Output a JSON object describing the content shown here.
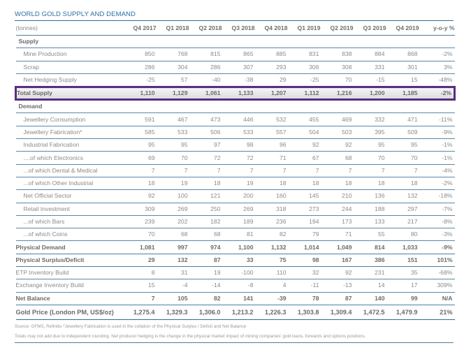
{
  "title": "WORLD GOLD SUPPLY AND DEMAND",
  "header": {
    "unit": "(tonnes)",
    "columns": [
      "Q4 2017",
      "Q1 2018",
      "Q2 2018",
      "Q3 2018",
      "Q4 2018",
      "Q1 2019",
      "Q2 2019",
      "Q3 2019",
      "Q4 2019",
      "y-o-y %"
    ]
  },
  "sections": {
    "supply": "Supply",
    "demand": "Demand"
  },
  "rows": {
    "mine_production": {
      "label": "Mine Production",
      "values": [
        "850",
        "768",
        "815",
        "865",
        "885",
        "831",
        "838",
        "884",
        "868"
      ],
      "yoy": "-2%"
    },
    "scrap": {
      "label": "Scrap",
      "values": [
        "286",
        "304",
        "286",
        "307",
        "293",
        "306",
        "308",
        "331",
        "301"
      ],
      "yoy": "3%"
    },
    "net_hedging": {
      "label": "Net Hedging Supply",
      "values": [
        "-25",
        "57",
        "-40",
        "-38",
        "29",
        "-25",
        "70",
        "-15",
        "15"
      ],
      "yoy": "-48%"
    },
    "total_supply": {
      "label": "Total Supply",
      "values": [
        "1,110",
        "1,129",
        "1,061",
        "1,133",
        "1,207",
        "1,112",
        "1,216",
        "1,200",
        "1,185"
      ],
      "yoy": "-2%"
    },
    "jewellery_consumption": {
      "label": "Jewellery Consumption",
      "values": [
        "591",
        "467",
        "473",
        "446",
        "532",
        "455",
        "469",
        "332",
        "471"
      ],
      "yoy": "-11%"
    },
    "jewellery_fabrication": {
      "label": "Jewellery Fabrication*",
      "values": [
        "585",
        "533",
        "506",
        "533",
        "557",
        "504",
        "503",
        "395",
        "509"
      ],
      "yoy": "-9%"
    },
    "industrial_fabrication": {
      "label": "Industrial Fabrication",
      "values": [
        "95",
        "95",
        "97",
        "98",
        "96",
        "92",
        "92",
        "95",
        "95"
      ],
      "yoy": "-1%"
    },
    "electronics": {
      "label": "....of which Electronics",
      "values": [
        "69",
        "70",
        "72",
        "72",
        "71",
        "67",
        "68",
        "70",
        "70"
      ],
      "yoy": "-1%"
    },
    "dental_medical": {
      "label": "...of which Dental & Medical",
      "values": [
        "7",
        "7",
        "7",
        "7",
        "7",
        "7",
        "7",
        "7",
        "7"
      ],
      "yoy": "-4%"
    },
    "other_industrial": {
      "label": "...of which Other Industrial",
      "values": [
        "18",
        "19",
        "18",
        "19",
        "18",
        "18",
        "18",
        "18",
        "18"
      ],
      "yoy": "-2%"
    },
    "net_official_sector": {
      "label": "Net Official Sector",
      "values": [
        "92",
        "100",
        "121",
        "200",
        "160",
        "145",
        "210",
        "136",
        "132"
      ],
      "yoy": "-18%"
    },
    "retail_investment": {
      "label": "Retail Investment",
      "values": [
        "309",
        "269",
        "250",
        "269",
        "318",
        "273",
        "244",
        "188",
        "297"
      ],
      "yoy": "-7%"
    },
    "bars": {
      "label": "...of which Bars",
      "values": [
        "239",
        "202",
        "182",
        "189",
        "236",
        "194",
        "173",
        "133",
        "217"
      ],
      "yoy": "-8%"
    },
    "coins": {
      "label": "...of which Coins",
      "values": [
        "70",
        "68",
        "68",
        "81",
        "82",
        "79",
        "71",
        "55",
        "80"
      ],
      "yoy": "-3%"
    },
    "physical_demand": {
      "label": "Physical Demand",
      "values": [
        "1,081",
        "997",
        "974",
        "1,100",
        "1,132",
        "1,014",
        "1,049",
        "814",
        "1,033"
      ],
      "yoy": "-9%"
    },
    "physical_surplus": {
      "label": "Physical Surplus/Deficit",
      "values": [
        "29",
        "132",
        "87",
        "33",
        "75",
        "98",
        "167",
        "386",
        "151"
      ],
      "yoy": "101%"
    },
    "etp_inventory": {
      "label": "ETP Inventory Build",
      "values": [
        "8",
        "31",
        "19",
        "-100",
        "110",
        "32",
        "92",
        "231",
        "35"
      ],
      "yoy": "-68%"
    },
    "exchange_inventory": {
      "label": "Exchange Inventory Build",
      "values": [
        "15",
        "-4",
        "-14",
        "-8",
        "4",
        "-11",
        "-13",
        "14",
        "17"
      ],
      "yoy": "309%"
    },
    "net_balance": {
      "label": "Net Balance",
      "values": [
        "7",
        "105",
        "82",
        "141",
        "-39",
        "78",
        "87",
        "140",
        "99"
      ],
      "yoy": "N/A"
    },
    "gold_price": {
      "label": "Gold Price (London PM, US$/oz)",
      "values": [
        "1,275.4",
        "1,329.3",
        "1,306.0",
        "1,213.2",
        "1,226.3",
        "1,303.8",
        "1,309.4",
        "1,472.5",
        "1,479.9"
      ],
      "yoy": "21%"
    }
  },
  "notes": {
    "line1": "Source: GFMS, Refinitiv  *Jewellery Fabrication is used in the collation of the Physical Surplus / Deficit and Net Balance",
    "line2": "Totals may not add due to independent rounding.  Net producer hedging is the change in the physical market impact of mining companies' gold loans, forwards and options positions."
  },
  "colors": {
    "title_blue": "#2c6ea3",
    "rule_blue": "#2f6f98",
    "highlight_purple": "#5b2c83"
  }
}
